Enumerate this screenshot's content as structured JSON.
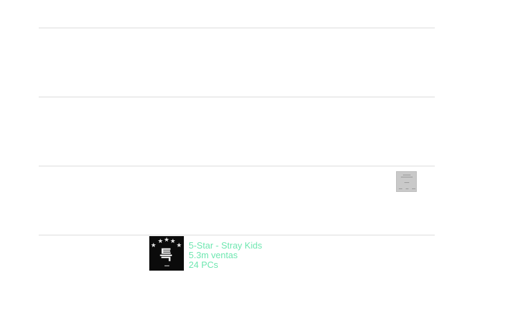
{
  "album": {
    "title": "5-Star - Stray Kids",
    "sales": "5.3m ventas",
    "pcs": "24 PCs",
    "cover_text": "특"
  },
  "colors": {
    "accent": "#6ee7b0",
    "divider": "#dcdcdc"
  },
  "icons": {
    "cover_stars": "star-icon"
  }
}
